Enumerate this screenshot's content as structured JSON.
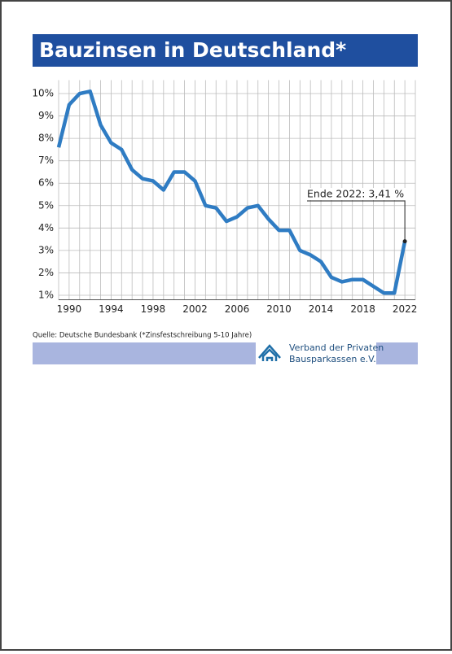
{
  "chart_data": {
    "type": "line",
    "title": "Bauzinsen in Deutschland*",
    "x": [
      1989,
      1990,
      1991,
      1992,
      1993,
      1994,
      1995,
      1996,
      1997,
      1998,
      1999,
      2000,
      2001,
      2002,
      2003,
      2004,
      2005,
      2006,
      2007,
      2008,
      2009,
      2010,
      2011,
      2012,
      2013,
      2014,
      2015,
      2016,
      2017,
      2018,
      2019,
      2020,
      2021,
      2022
    ],
    "series": [
      {
        "color": "#2f7cc3",
        "values": [
          7.6,
          9.5,
          10.0,
          10.1,
          8.6,
          7.8,
          7.5,
          6.6,
          6.2,
          6.1,
          5.7,
          6.5,
          6.5,
          6.1,
          5.0,
          4.9,
          4.3,
          4.5,
          4.9,
          5.0,
          4.4,
          3.9,
          3.9,
          3.0,
          2.8,
          2.5,
          1.8,
          1.6,
          1.7,
          1.7,
          1.4,
          1.1,
          1.1,
          3.41
        ]
      }
    ],
    "xlim": [
      1989,
      2023
    ],
    "xticks": [
      1990,
      1994,
      1998,
      2002,
      2006,
      2010,
      2014,
      2018,
      2022
    ],
    "xminorticks": [
      1989,
      1990,
      1991,
      1992,
      1993,
      1994,
      1995,
      1996,
      1997,
      1998,
      1999,
      2000,
      2001,
      2002,
      2003,
      2004,
      2005,
      2006,
      2007,
      2008,
      2009,
      2010,
      2011,
      2012,
      2013,
      2014,
      2015,
      2016,
      2017,
      2018,
      2019,
      2020,
      2021,
      2022,
      2023
    ],
    "ylim": [
      0.8,
      10.6
    ],
    "yticks": [
      {
        "value": 1,
        "label": "1%"
      },
      {
        "value": 2,
        "label": "2%"
      },
      {
        "value": 3,
        "label": "3%"
      },
      {
        "value": 4,
        "label": "4%"
      },
      {
        "value": 5,
        "label": "5%"
      },
      {
        "value": 6,
        "label": "6%"
      },
      {
        "value": 7,
        "label": "7%"
      },
      {
        "value": 8,
        "label": "8%"
      },
      {
        "value": 9,
        "label": "9%"
      },
      {
        "value": 10,
        "label": "10%"
      }
    ],
    "grid": true,
    "annotation": {
      "text": "Ende 2022: 3,41 %",
      "x": 2022,
      "y": 3.41
    },
    "source": "Quelle: Deutsche Bundesbank (*Zinsfestschreibung 5-10 Jahre)"
  },
  "logo": {
    "line1": "Verband der Privaten",
    "line2": "Bausparkassen e.V."
  }
}
